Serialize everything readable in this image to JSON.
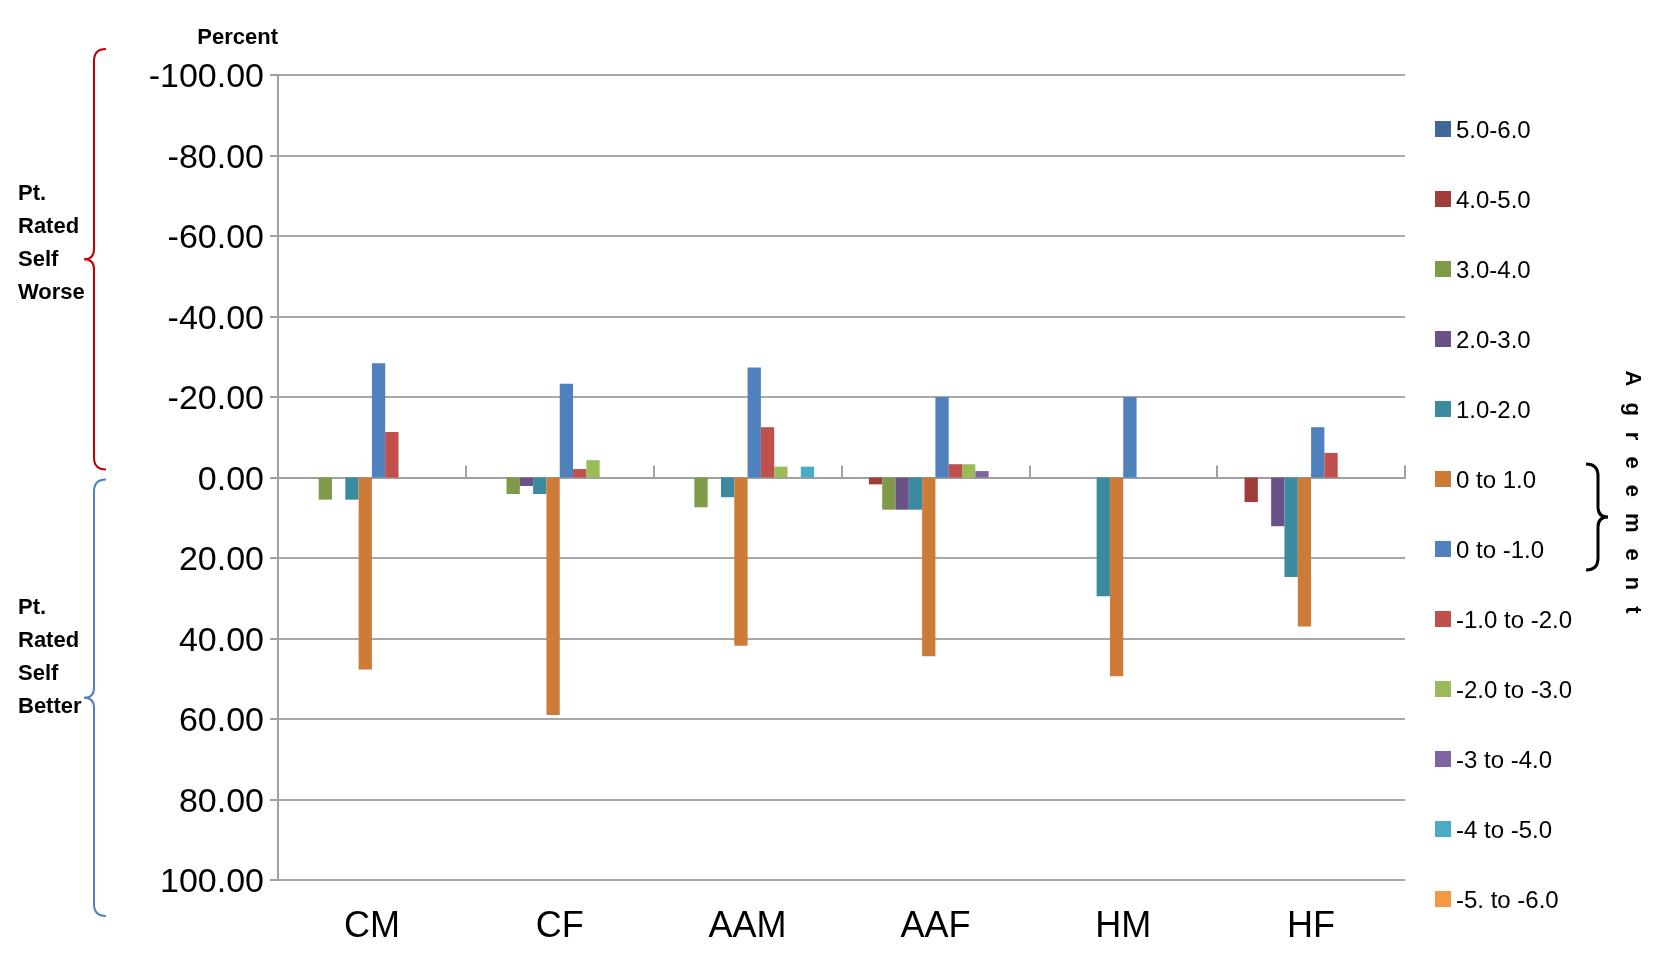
{
  "chart_data": {
    "type": "bar",
    "ylabel": "Percent",
    "legend_title": "Agreement",
    "annotations": [
      "Pt. Rated Self Worse",
      "Pt. Rated Self Better"
    ],
    "categories": [
      "CM",
      "CF",
      "AAM",
      "AAF",
      "HM",
      "HF"
    ],
    "ylim": [
      100,
      -100
    ],
    "yticks": [
      {
        "value": -100,
        "label": "-100.00"
      },
      {
        "value": -80,
        "label": "-80.00"
      },
      {
        "value": -60,
        "label": "-60.00"
      },
      {
        "value": -40,
        "label": "-40.00"
      },
      {
        "value": -20,
        "label": "-20.00"
      },
      {
        "value": 0,
        "label": "0.00"
      },
      {
        "value": 20,
        "label": "20.00"
      },
      {
        "value": 40,
        "label": "40.00"
      },
      {
        "value": 60,
        "label": "60.00"
      },
      {
        "value": 80,
        "label": "80.00"
      },
      {
        "value": 100,
        "label": "100.00"
      }
    ],
    "grid": "y",
    "legend": "right",
    "series": [
      {
        "name": "5.0-6.0",
        "color": "#3f6797",
        "values": [
          0,
          0,
          0,
          0,
          0,
          0
        ]
      },
      {
        "name": "4.0-5.0",
        "color": "#a03c3a",
        "values": [
          0,
          0,
          0,
          1.7,
          0,
          6.1
        ]
      },
      {
        "name": "3.0-4.0",
        "color": "#7f9a48",
        "values": [
          5.5,
          4.1,
          7.4,
          8.0,
          0,
          0
        ]
      },
      {
        "name": "2.0-3.0",
        "color": "#6a5187",
        "values": [
          0,
          2.1,
          0,
          8.0,
          0,
          12.1
        ]
      },
      {
        "name": "1.0-2.0",
        "color": "#3a8ba0",
        "values": [
          5.5,
          4.1,
          4.9,
          8.0,
          29.5,
          24.7
        ]
      },
      {
        "name": "0 to 1.0",
        "color": "#cc7b38",
        "values": [
          47.7,
          59,
          41.8,
          44.4,
          49.4,
          37
        ]
      },
      {
        "name": "0 to -1.0",
        "color": "#4f81bd",
        "values": [
          -28.4,
          -23.3,
          -27.3,
          -20,
          -20,
          -12.5
        ]
      },
      {
        "name": "-1.0 to -2.0",
        "color": "#c0504d",
        "values": [
          -11.3,
          -2.1,
          -12.5,
          -3.3,
          0,
          -6.1
        ]
      },
      {
        "name": "-2.0 to -3.0",
        "color": "#9bbb59",
        "values": [
          0,
          -4.3,
          -2.7,
          -3.3,
          0,
          0
        ]
      },
      {
        "name": "-3 to -4.0",
        "color": "#8064a2",
        "values": [
          0,
          0,
          0,
          -1.6,
          0,
          0
        ]
      },
      {
        "name": "-4 to -5.0",
        "color": "#4bacc6",
        "values": [
          0,
          0,
          -2.7,
          0,
          0,
          0
        ]
      },
      {
        "name": "-5. to -6.0",
        "color": "#f79646",
        "values": [
          0,
          0,
          0,
          0,
          0,
          0
        ]
      }
    ]
  }
}
